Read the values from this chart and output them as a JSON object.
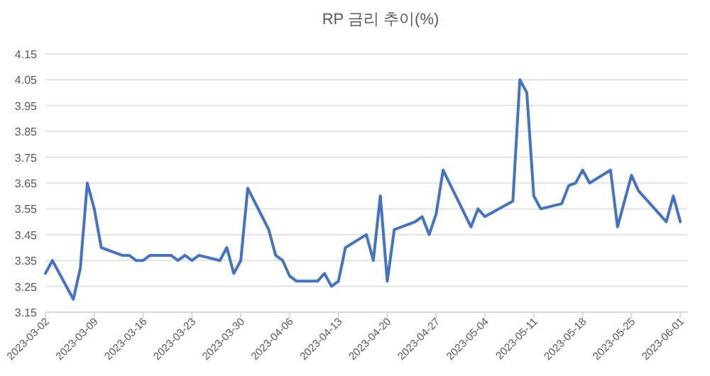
{
  "chart_data": {
    "type": "line",
    "title": "RP 금리 추이(%)",
    "x": [
      "2023-03-02",
      "2023-03-03",
      "2023-03-06",
      "2023-03-07",
      "2023-03-08",
      "2023-03-09",
      "2023-03-10",
      "2023-03-13",
      "2023-03-14",
      "2023-03-15",
      "2023-03-16",
      "2023-03-17",
      "2023-03-20",
      "2023-03-21",
      "2023-03-22",
      "2023-03-23",
      "2023-03-24",
      "2023-03-27",
      "2023-03-28",
      "2023-03-29",
      "2023-03-30",
      "2023-03-31",
      "2023-04-03",
      "2023-04-04",
      "2023-04-05",
      "2023-04-06",
      "2023-04-07",
      "2023-04-10",
      "2023-04-11",
      "2023-04-12",
      "2023-04-13",
      "2023-04-14",
      "2023-04-17",
      "2023-04-18",
      "2023-04-19",
      "2023-04-20",
      "2023-04-21",
      "2023-04-24",
      "2023-04-25",
      "2023-04-26",
      "2023-04-27",
      "2023-04-28",
      "2023-05-02",
      "2023-05-03",
      "2023-05-04",
      "2023-05-08",
      "2023-05-09",
      "2023-05-10",
      "2023-05-11",
      "2023-05-12",
      "2023-05-15",
      "2023-05-16",
      "2023-05-17",
      "2023-05-18",
      "2023-05-19",
      "2023-05-22",
      "2023-05-23",
      "2023-05-25",
      "2023-05-26",
      "2023-05-30",
      "2023-05-31",
      "2023-06-01"
    ],
    "series": [
      {
        "color": "#4472c4",
        "values": [
          3.3,
          3.35,
          3.2,
          3.32,
          3.65,
          3.55,
          3.4,
          3.37,
          3.37,
          3.35,
          3.35,
          3.37,
          3.37,
          3.35,
          3.37,
          3.35,
          3.37,
          3.35,
          3.4,
          3.3,
          3.35,
          3.63,
          3.47,
          3.37,
          3.35,
          3.29,
          3.27,
          3.27,
          3.3,
          3.25,
          3.27,
          3.4,
          3.45,
          3.35,
          3.6,
          3.27,
          3.47,
          3.5,
          3.52,
          3.45,
          3.53,
          3.7,
          3.48,
          3.55,
          3.52,
          3.58,
          4.05,
          4.0,
          3.6,
          3.55,
          3.57,
          3.64,
          3.65,
          3.7,
          3.65,
          3.7,
          3.48,
          3.68,
          3.62,
          3.5,
          3.6,
          3.5
        ]
      }
    ],
    "xlim": [
      "2023-03-02",
      "2023-06-02"
    ],
    "xticks": [
      "2023-03-02",
      "2023-03-09",
      "2023-03-16",
      "2023-03-23",
      "2023-03-30",
      "2023-04-06",
      "2023-04-13",
      "2023-04-20",
      "2023-04-27",
      "2023-05-04",
      "2023-05-11",
      "2023-05-18",
      "2023-05-25",
      "2023-06-01"
    ],
    "ylim": [
      3.15,
      4.15
    ],
    "yticks": [
      3.15,
      3.25,
      3.35,
      3.45,
      3.55,
      3.65,
      3.75,
      3.85,
      3.95,
      4.05,
      4.15
    ],
    "grid": "y"
  }
}
